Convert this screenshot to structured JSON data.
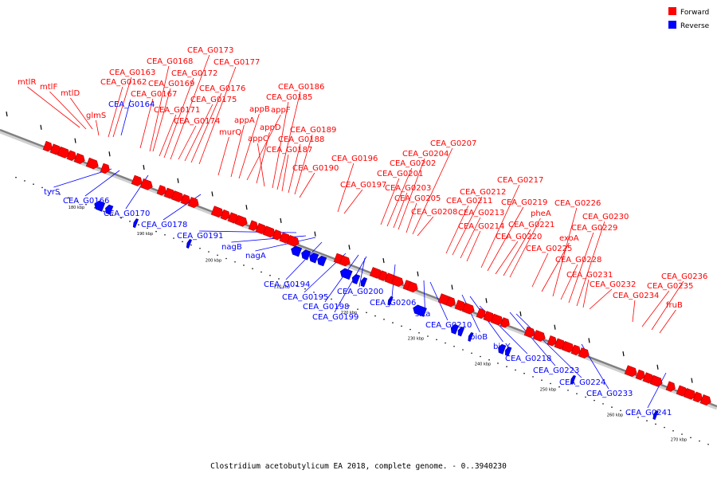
{
  "caption": "Clostridium acetobutylicum EA 2018, complete genome. - 0..3940230",
  "legend": [
    {
      "label": "Forward",
      "color": "#ff0000"
    },
    {
      "label": "Reverse",
      "color": "#0000ff"
    }
  ],
  "colors": {
    "forward": "#ff0000",
    "reverse": "#0000ff",
    "backbone": "#808080"
  },
  "scale_ticks": [
    "180 kbp",
    "190 kbp",
    "200 kbp",
    "210 kbp",
    "220 kbp",
    "230 kbp",
    "240 kbp",
    "250 kbp",
    "260 kbp",
    "270 kbp"
  ],
  "forward_labels": [
    "mtlR",
    "mtlF",
    "mtlD",
    "glmS",
    "CEA_G0162",
    "CEA_G0163",
    "CEA_G0167",
    "CEA_G0168",
    "CEA_G0169",
    "CEA_G0171",
    "CEA_G0172",
    "CEA_G0173",
    "CEA_G0174",
    "CEA_G0175",
    "CEA_G0176",
    "CEA_G0177",
    "murQ",
    "appA",
    "appB",
    "appF",
    "appD",
    "appC",
    "CEA_G0185",
    "CEA_G0186",
    "CEA_G0187",
    "CEA_G0188",
    "CEA_G0189",
    "CEA_G0190",
    "CEA_G0196",
    "CEA_G0197",
    "CEA_G0201",
    "CEA_G0202",
    "CEA_G0203",
    "CEA_G0204",
    "CEA_G0205",
    "CEA_G0207",
    "CEA_G0208",
    "CEA_G0211",
    "CEA_G0212",
    "CEA_G0213",
    "CEA_G0214",
    "CEA_G0217",
    "CEA_G0219",
    "CEA_G0220",
    "CEA_G0221",
    "pheA",
    "CEA_G0225",
    "exoA",
    "CEA_G0226",
    "CEA_G0228",
    "CEA_G0229",
    "CEA_G0230",
    "CEA_G0231",
    "CEA_G0232",
    "CEA_G0234",
    "CEA_G0235",
    "CEA_G0236",
    "fruB"
  ],
  "reverse_labels": [
    "CEA_G0164",
    "tyrS",
    "CEA_G0166",
    "CEA_G0170",
    "CEA_G0178",
    "CEA_G0191",
    "nagB",
    "nagA",
    "CEA_G0194",
    "CEA_G0195",
    "CEA_G0198",
    "CEA_G0199",
    "CEA_G0200",
    "CEA_G0206",
    "srta",
    "CEA_G0210",
    "bioB",
    "bioY",
    "CEA_G0218",
    "CEA_G0223",
    "CEA_G0224",
    "CEA_G0233",
    "CEA_G0241"
  ]
}
